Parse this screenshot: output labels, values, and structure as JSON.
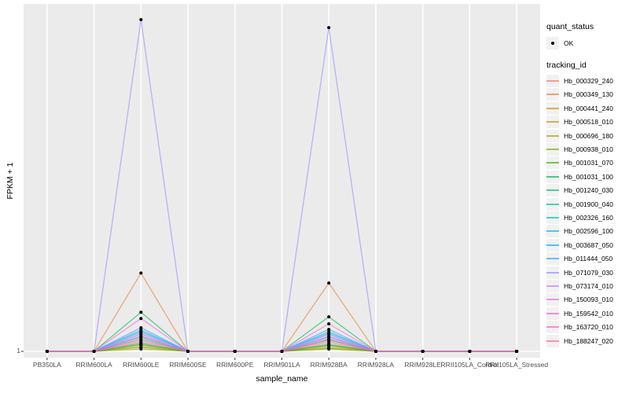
{
  "figure": {
    "x_axis_title": "sample_name",
    "y_axis_title": "FPKM + 1",
    "y_tick_label": "1"
  },
  "legend": {
    "quant_status_title": "quant_status",
    "quant_status_items": [
      {
        "label": "OK",
        "marker": "black-point"
      }
    ],
    "tracking_id_title": "tracking_id"
  },
  "chart_data": {
    "type": "line",
    "title": "",
    "xlabel": "sample_name",
    "ylabel": "FPKM + 1",
    "y_axis_ticks": [
      "1"
    ],
    "legend_position": "right",
    "panel_background": "#EBEBEB",
    "gridline_color": "#FFFFFF",
    "point_color": "#000000",
    "quant_status": "OK",
    "categories": [
      "PB350LA",
      "RRIM600LA",
      "RRIM600LE",
      "RRIM600SE",
      "RRIM600PE",
      "RRIM901LA",
      "RRIM928BA",
      "RRIM928LA",
      "RRIM928LE",
      "RRII105LA_Control",
      "RRII105LA_Stressed"
    ],
    "values_unit": "estimated fraction of panel height above the y=1 baseline; only tick '1' is labeled on the y axis; spikes occur at RRIM600LE and RRIM928BA",
    "series": [
      {
        "name": "Hb_000329_240",
        "color": "#F8766D",
        "values": [
          0,
          0,
          0.033,
          0,
          0,
          0,
          0.031,
          0,
          0,
          0,
          0
        ]
      },
      {
        "name": "Hb_000349_130",
        "color": "#EA8331",
        "values": [
          0,
          0,
          0.236,
          0,
          0,
          0,
          0.206,
          0,
          0,
          0,
          0
        ]
      },
      {
        "name": "Hb_000441_240",
        "color": "#D89000",
        "values": [
          0,
          0,
          0.021,
          0,
          0,
          0,
          0.019,
          0,
          0,
          0,
          0
        ]
      },
      {
        "name": "Hb_000518_010",
        "color": "#C09B00",
        "values": [
          0,
          0,
          0.014,
          0,
          0,
          0,
          0.012,
          0,
          0,
          0,
          0
        ]
      },
      {
        "name": "Hb_000696_180",
        "color": "#A3A500",
        "values": [
          0,
          0,
          0.012,
          0,
          0,
          0,
          0.009,
          0,
          0,
          0,
          0
        ]
      },
      {
        "name": "Hb_000938_010",
        "color": "#7CAE00",
        "values": [
          0,
          0,
          0.007,
          0,
          0,
          0,
          0.007,
          0,
          0,
          0,
          0
        ]
      },
      {
        "name": "Hb_001031_070",
        "color": "#39B600",
        "values": [
          0,
          0,
          0.019,
          0,
          0,
          0,
          0.017,
          0,
          0,
          0,
          0
        ]
      },
      {
        "name": "Hb_001031_100",
        "color": "#00BB4E",
        "values": [
          0,
          0,
          0.118,
          0,
          0,
          0,
          0.104,
          0,
          0,
          0,
          0
        ]
      },
      {
        "name": "Hb_001240_030",
        "color": "#00BF7D",
        "values": [
          0,
          0,
          0.024,
          0,
          0,
          0,
          0.021,
          0,
          0,
          0,
          0
        ]
      },
      {
        "name": "Hb_001900_040",
        "color": "#00C1A3",
        "values": [
          0,
          0,
          0.038,
          0,
          0,
          0,
          0.035,
          0,
          0,
          0,
          0
        ]
      },
      {
        "name": "Hb_002326_160",
        "color": "#00BFC4",
        "values": [
          0,
          0,
          0.045,
          0,
          0,
          0,
          0.043,
          0,
          0,
          0,
          0
        ]
      },
      {
        "name": "Hb_002596_100",
        "color": "#00BAE0",
        "values": [
          0,
          0,
          0.059,
          0,
          0,
          0,
          0.054,
          0,
          0,
          0,
          0
        ]
      },
      {
        "name": "Hb_003687_050",
        "color": "#00B0F6",
        "values": [
          0,
          0,
          0.064,
          0,
          0,
          0,
          0.059,
          0,
          0,
          0,
          0
        ]
      },
      {
        "name": "Hb_011444_050",
        "color": "#35A2FF",
        "values": [
          0,
          0,
          0.071,
          0,
          0,
          0,
          0.066,
          0,
          0,
          0,
          0
        ]
      },
      {
        "name": "Hb_071079_030",
        "color": "#9590FF",
        "values": [
          0,
          0,
          1.0,
          0,
          0,
          0,
          0.976,
          0,
          0,
          0,
          0
        ]
      },
      {
        "name": "Hb_073174_010",
        "color": "#C77CFF",
        "values": [
          0,
          0,
          0.054,
          0,
          0,
          0,
          0.05,
          0,
          0,
          0,
          0
        ]
      },
      {
        "name": "Hb_150093_010",
        "color": "#E76BF3",
        "values": [
          0,
          0,
          0.05,
          0,
          0,
          0,
          0.045,
          0,
          0,
          0,
          0
        ]
      },
      {
        "name": "Hb_159542_010",
        "color": "#FA62DB",
        "values": [
          0,
          0,
          0.099,
          0,
          0,
          0,
          0.083,
          0,
          0,
          0,
          0
        ]
      },
      {
        "name": "Hb_163720_010",
        "color": "#FF62BC",
        "values": [
          0,
          0,
          0.043,
          0,
          0,
          0,
          0.038,
          0,
          0,
          0,
          0
        ]
      },
      {
        "name": "Hb_188247_020",
        "color": "#FF6A98",
        "values": [
          0,
          0,
          0.028,
          0,
          0,
          0,
          0.026,
          0,
          0,
          0,
          0
        ]
      }
    ]
  }
}
